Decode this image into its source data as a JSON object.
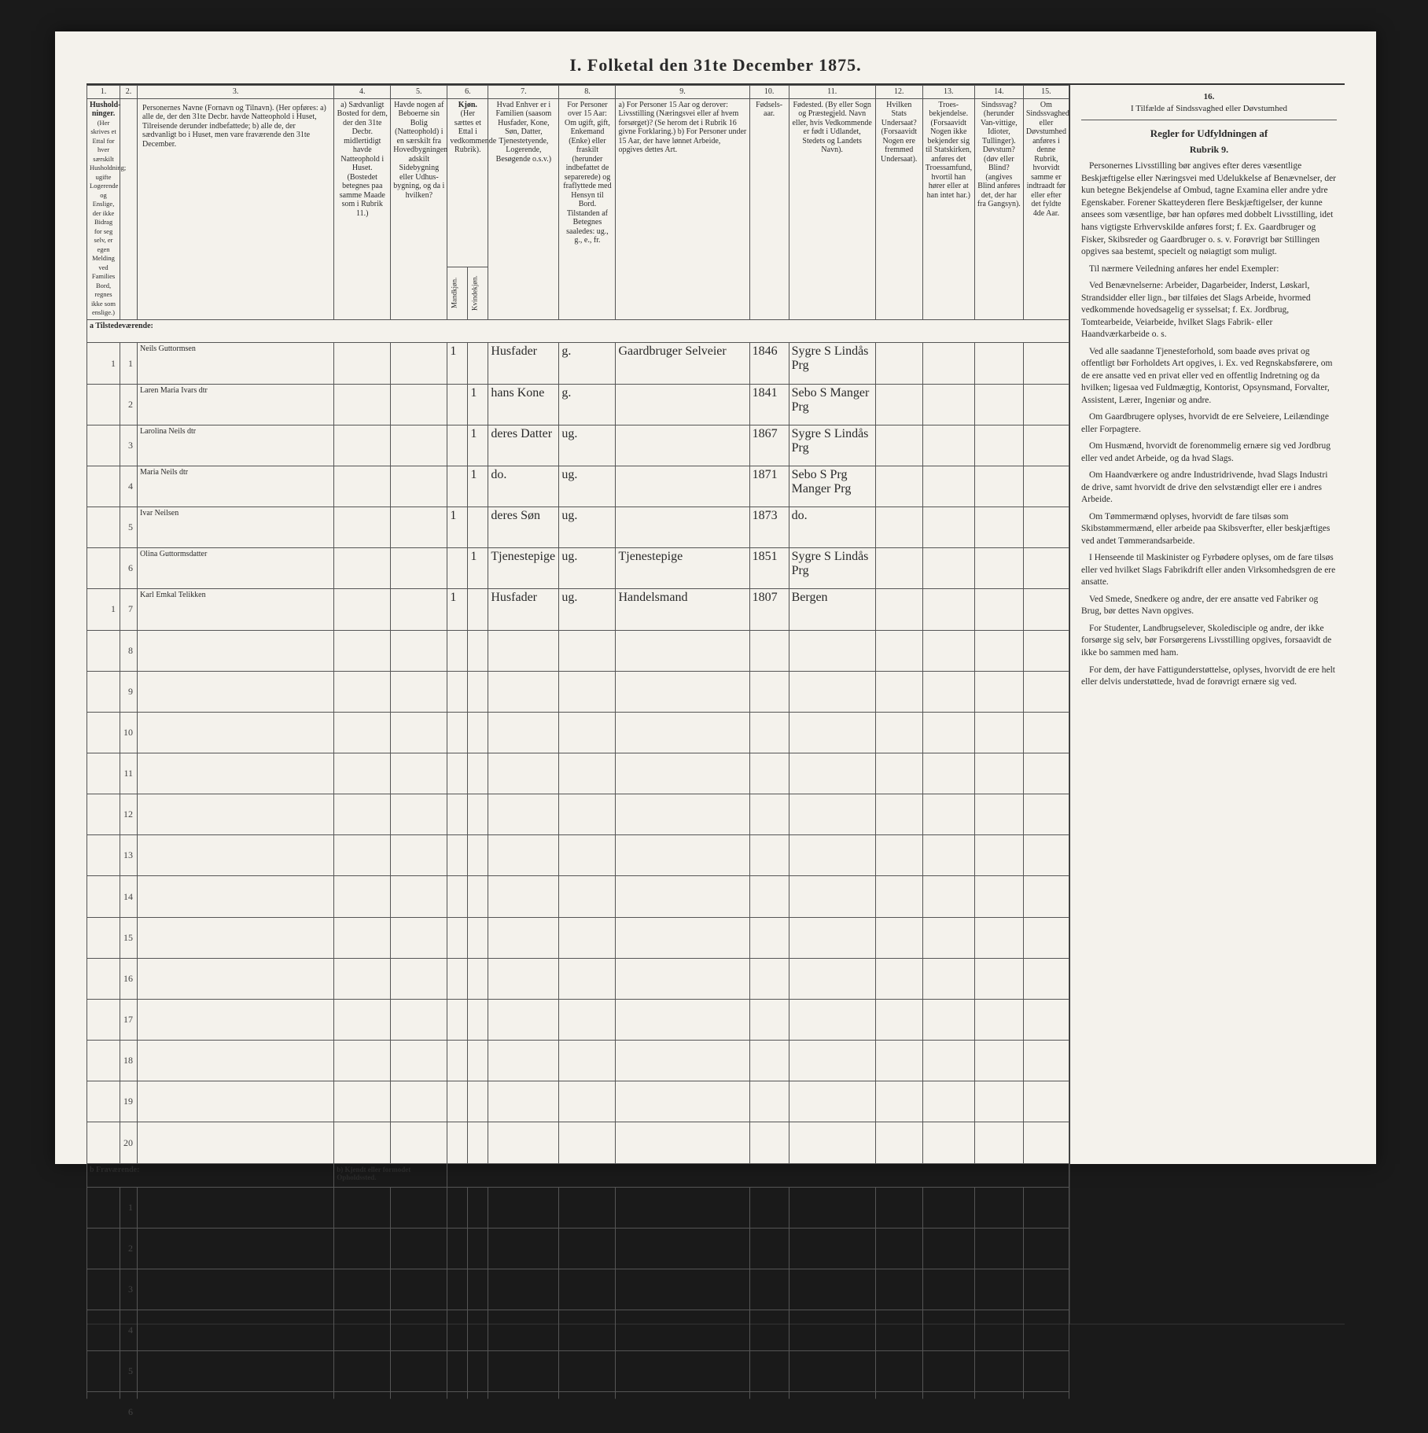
{
  "title": "I. Folketal den 31te December 1875.",
  "colnums": [
    "1.",
    "2.",
    "3.",
    "4.",
    "5.",
    "6.",
    "7.",
    "8.",
    "9.",
    "10.",
    "11.",
    "12.",
    "13.",
    "14.",
    "15.",
    "16."
  ],
  "headers": {
    "c1": "Hushold-ninger.",
    "c1b": "(Her skrives et Ettal for hver særskilt Husholdning; ugifte Logerende og Enslige, der ikke Bidrag for seg selv, er egen Melding ved Families Bord, regnes ikke som enslige.)",
    "c2": "",
    "c3": "Personernes Navne (Fornavn og Tilnavn).\n(Her opføres:\na) alle de, der den 31te Decbr. havde Natteophold i Huset, Tilreisende derunder indbefattede;\nb) alle de, der sædvanligt bo i Huset, men vare fraværende den 31te December.",
    "c4": "a) Sædvanligt Bosted for dem, der den 31te Decbr. midlertidigt havde Natteophold i Huset. (Bostedet betegnes paa samme Maade som i Rubrik 11.)",
    "c5": "Havde nogen af Beboerne sin Bolig (Natteophold) i en særskilt fra Hovedbygningen adskilt Sidebygning eller Udhus-bygning, og da i hvilken?",
    "c6": "Kjøn.",
    "c6a": "(Her sættes et Ettal i vedkommende Rubrik).",
    "c6m": "Mandkjøn.",
    "c6k": "Kvindekjøn.",
    "c7": "Hvad Enhver er i Familien (saasom Husfader, Kone, Søn, Datter, Tjenestetyende, Logerende, Besøgende o.s.v.)",
    "c8": "For Personer over 15 Aar: Om ugift, gift, Enkemand (Enke) eller fraskilt (herunder indbefattet de separerede) og fraflyttede med Hensyn til Bord. Tilstanden af Betegnes saaledes: ug., g., e., fr.",
    "c9": "a) For Personer 15 Aar og derover: Livsstilling (Næringsvei eller af hvem forsørget)? (Se herom det i Rubrik 16 givne Forklaring.)\nb) For Personer under 15 Aar, der have lønnet Arbeide, opgives dettes Art.",
    "c10": "Fødsels-aar.",
    "c11": "Fødested.\n(By eller Sogn og Præstegjeld. Navn eller, hvis Vedkommende er født i Udlandet, Stedets og Landets Navn).",
    "c12": "Hvilken Stats Undersaat?\n(Forsaavidt Nogen ere fremmed Undersaat).",
    "c13": "Troes-bekjendelse.\n(Forsaavidt Nogen ikke bekjender sig til Statskirken, anføres det Troessamfund, hvortil han hører eller at han intet har.)",
    "c14": "Sindssvag? (herunder Van-vittige, Idioter, Tullinger). Døvstum? (døv eller Blind? (angives Blind anføres det, der har fra Gangsyn).",
    "c15": "Om Sindssvaghed eller Døvstumhed anføres i denne Rubrik, hvorvidt samme er indtraadt før eller efter det fyldte 4de Aar.",
    "c16": "I Tilfælde af Sindssvaghed eller Døvstumhed"
  },
  "section_a": "a Tilstedeværende:",
  "section_b": "b Fraværende:",
  "section_b_note": "b) Kjendt eller formodet Opholdssted.",
  "rows": [
    {
      "h": "1",
      "n": "1",
      "name": "Neils Guttormsen",
      "c5": "",
      "c6m": "1",
      "c6k": "",
      "c7": "Husfader",
      "c8": "g.",
      "c9": "Gaardbruger Selveier",
      "c10": "1846",
      "c11": "Sygre S Lindås Prg"
    },
    {
      "h": "",
      "n": "2",
      "name": "Laren Maria Ivars dtr",
      "c5": "",
      "c6m": "",
      "c6k": "1",
      "c7": "hans Kone",
      "c8": "g.",
      "c9": "",
      "c10": "1841",
      "c11": "Sebo S Manger Prg"
    },
    {
      "h": "",
      "n": "3",
      "name": "Larolina Neils dtr",
      "c5": "",
      "c6m": "",
      "c6k": "1",
      "c7": "deres Datter",
      "c8": "ug.",
      "c9": "",
      "c10": "1867",
      "c11": "Sygre S Lindås Prg"
    },
    {
      "h": "",
      "n": "4",
      "name": "Maria Neils dtr",
      "c5": "",
      "c6m": "",
      "c6k": "1",
      "c7": "do.",
      "c8": "ug.",
      "c9": "",
      "c10": "1871",
      "c11": "Sebo S Prg Manger Prg"
    },
    {
      "h": "",
      "n": "5",
      "name": "Ivar Neilsen",
      "c5": "",
      "c6m": "1",
      "c6k": "",
      "c7": "deres Søn",
      "c8": "ug.",
      "c9": "",
      "c10": "1873",
      "c11": "do."
    },
    {
      "h": "",
      "n": "6",
      "name": "Olina Guttormsdatter",
      "c5": "",
      "c6m": "",
      "c6k": "1",
      "c7": "Tjenestepige",
      "c8": "ug.",
      "c9": "Tjenestepige",
      "c10": "1851",
      "c11": "Sygre S Lindås Prg"
    },
    {
      "h": "1",
      "n": "7",
      "name": "Karl Emkal Telikken",
      "c5": "",
      "c6m": "1",
      "c6k": "",
      "c7": "Husfader",
      "c8": "ug.",
      "c9": "Handelsmand",
      "c10": "1807",
      "c11": "Bergen"
    }
  ],
  "blank_present": [
    8,
    9,
    10,
    11,
    12,
    13,
    14,
    15,
    16,
    17,
    18,
    19,
    20
  ],
  "blank_absent": [
    1,
    2,
    3,
    4,
    5,
    6
  ],
  "rules": {
    "hdr": "Regler for Udfyldningen af",
    "sub": "Rubrik 9.",
    "paras": [
      "Personernes Livsstilling bør angives efter deres væsentlige Beskjæftigelse eller Næringsvei med Udelukkelse af Benævnelser, der kun betegne Bekjendelse af Ombud, tagne Examina eller andre ydre Egenskaber. Forener Skatteyderen flere Beskjæftigelser, der kunne ansees som væsentlige, bør han opføres med dobbelt Livsstilling, idet hans vigtigste Erhvervskilde anføres forst; f. Ex. Gaardbruger og Fisker, Skibsreder og Gaardbruger o. s. v. Forøvrigt bør Stillingen opgives saa bestemt, specielt og nøiagtigt som muligt.",
      "Til nærmere Veiledning anføres her endel Exempler:",
      "Ved Benævnelserne: Arbeider, Dagarbeider, Inderst, Løskarl, Strandsidder eller lign., bør tilføies det Slags Arbeide, hvormed vedkommende hovedsagelig er sysselsat; f. Ex. Jordbrug, Tomtearbeide, Veiarbeide, hvilket Slags Fabrik- eller Haandværkarbeide o. s.",
      "Ved alle saadanne Tjenesteforhold, som baade øves privat og offentligt bør Forholdets Art opgives, i. Ex. ved Regnskabsførere, om de ere ansatte ved en privat eller ved en offentlig Indretning og da hvilken; ligesaa ved Fuldmægtig, Kontorist, Opsynsmand, Forvalter, Assistent, Lærer, Ingeniør og andre.",
      "Om Gaardbrugere oplyses, hvorvidt de ere Selveiere, Leilændinge eller Forpagtere.",
      "Om Husmænd, hvorvidt de forenommelig ernære sig ved Jordbrug eller ved andet Arbeide, og da hvad Slags.",
      "Om Haandværkere og andre Industridrivende, hvad Slags Industri de drive, samt hvorvidt de drive den selvstændigt eller ere i andres Arbeide.",
      "Om Tømmermænd oplyses, hvorvidt de fare tilsøs som Skibstømmermænd, eller arbeide paa Skibsverfter, eller beskjæftiges ved andet Tømmerandsarbeide.",
      "I Henseende til Maskinister og Fyrbødere oplyses, om de fare tilsøs eller ved hvilket Slags Fabrikdrift eller anden Virksomhedsgren de ere ansatte.",
      "Ved Smede, Snedkere og andre, der ere ansatte ved Fabriker og Brug, bør dettes Navn opgives.",
      "For Studenter, Landbrugselever, Skoledisciple og andre, der ikke forsørge sig selv, bør Forsørgerens Livsstilling opgives, forsaavidt de ikke bo sammen med ham.",
      "For dem, der have Fattigunderstøttelse, oplyses, hvorvidt de ere helt eller delvis understøttede, hvad de forøvrigt ernære sig ved."
    ]
  },
  "colors": {
    "paper": "#f4f2ec",
    "ink": "#2a2a2a",
    "rule": "#555",
    "bg": "#1a1a1a"
  }
}
